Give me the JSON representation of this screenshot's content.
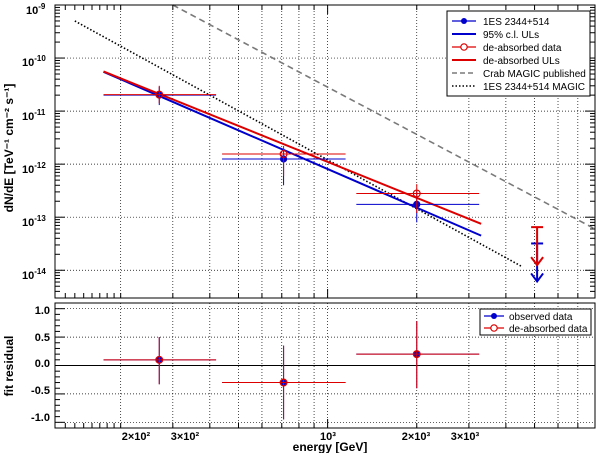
{
  "chart_data": [
    {
      "type": "scatter",
      "title": "",
      "xlabel": "energy [GeV]",
      "ylabel": "dN/dE [TeV⁻¹ cm⁻² s⁻¹]",
      "xscale": "log",
      "yscale": "log",
      "xlim": [
        120,
        8000
      ],
      "ylim": [
        3e-15,
        1e-09
      ],
      "grid": true,
      "legend_position": "top-right",
      "y_tick_exponents": [
        "-9",
        "-10",
        "-11",
        "-12",
        "-13",
        "-14"
      ],
      "y_tick_base": "10",
      "legend": [
        "1ES 2344+514",
        "95% c.l. ULs",
        "de-absorbed data",
        "de-absorbed ULs",
        "Crab MAGIC published",
        "1ES 2344+514 MAGIC"
      ],
      "series": [
        {
          "name": "1ES 2344+514",
          "color": "#0000cc",
          "points": [
            {
              "x": 270,
              "y": 2e-11,
              "xlo": 175,
              "xhi": 420,
              "ylo": 1.3e-11,
              "yhi": 2.9e-11
            },
            {
              "x": 710,
              "y": 1.25e-12,
              "xlo": 440,
              "xhi": 1150,
              "ylo": 4e-13,
              "yhi": 2e-12
            },
            {
              "x": 2000,
              "y": 1.75e-13,
              "xlo": 1250,
              "xhi": 3250,
              "ylo": 8e-14,
              "yhi": 3.2e-13
            }
          ]
        },
        {
          "name": "95% c.l. ULs",
          "color": "#0000cc",
          "x": [
            5100
          ],
          "y": [
            3.2e-14
          ],
          "fit_line": {
            "x": [
              175,
              3300
            ],
            "y": [
              5.5e-11,
              4.5e-14
            ]
          }
        },
        {
          "name": "de-absorbed data",
          "color": "#dd0000",
          "points": [
            {
              "x": 270,
              "y": 2.05e-11,
              "xlo": 175,
              "xhi": 420,
              "ylo": 1.4e-11,
              "yhi": 3e-11
            },
            {
              "x": 710,
              "y": 1.55e-12,
              "xlo": 440,
              "xhi": 1150,
              "ylo": 6e-13,
              "yhi": 2.2e-12
            },
            {
              "x": 2000,
              "y": 2.8e-13,
              "xlo": 1250,
              "xhi": 3250,
              "ylo": 1.2e-13,
              "yhi": 4.2e-13
            }
          ]
        },
        {
          "name": "de-absorbed ULs",
          "color": "#dd0000",
          "x": [
            5100
          ],
          "y": [
            6.5e-14
          ],
          "fit_line": {
            "x": [
              175,
              3300
            ],
            "y": [
              5.6e-11,
              7.5e-14
            ]
          }
        },
        {
          "name": "Crab MAGIC published",
          "color": "#7a7a7a",
          "line": {
            "x": [
              300,
              8000
            ],
            "y": [
              1e-09,
              6e-14
            ]
          }
        },
        {
          "name": "1ES 2344+514 MAGIC",
          "color": "#000000",
          "line": {
            "x": [
              140,
              4500
            ],
            "y": [
              5e-10,
              1.2e-14
            ]
          }
        }
      ]
    },
    {
      "type": "scatter",
      "title": "",
      "xlabel": "energy [GeV]",
      "ylabel": "fit residual",
      "xscale": "log",
      "xlim": [
        120,
        8000
      ],
      "ylim": [
        -1.1,
        1.1
      ],
      "y_ticks": [
        "1.0",
        "0.5",
        "0.0",
        "-0.5",
        "-1.0"
      ],
      "x_ticks": [
        "2×10²",
        "3×10²",
        "10³",
        "2×10³",
        "3×10³"
      ],
      "grid": true,
      "legend_position": "top-right",
      "legend": [
        "observed data",
        "de-absorbed data"
      ],
      "series": [
        {
          "name": "observed data",
          "color": "#0000cc",
          "points": [
            {
              "x": 270,
              "y": 0.1,
              "xlo": 175,
              "xhi": 420,
              "ylo": -0.33,
              "yhi": 0.5
            },
            {
              "x": 710,
              "y": -0.3,
              "xlo": 440,
              "xhi": 1150,
              "ylo": -0.95,
              "yhi": 0.35
            },
            {
              "x": 2000,
              "y": 0.2,
              "xlo": 1250,
              "xhi": 3250,
              "ylo": -0.4,
              "yhi": 0.78
            }
          ]
        },
        {
          "name": "de-absorbed data",
          "color": "#dd0000",
          "points": [
            {
              "x": 270,
              "y": 0.1,
              "xlo": 175,
              "xhi": 420,
              "ylo": -0.33,
              "yhi": 0.5
            },
            {
              "x": 710,
              "y": -0.3,
              "xlo": 440,
              "xhi": 1150,
              "ylo": -0.95,
              "yhi": 0.35
            },
            {
              "x": 2000,
              "y": 0.2,
              "xlo": 1250,
              "xhi": 3250,
              "ylo": -0.4,
              "yhi": 0.78
            }
          ]
        }
      ]
    }
  ]
}
